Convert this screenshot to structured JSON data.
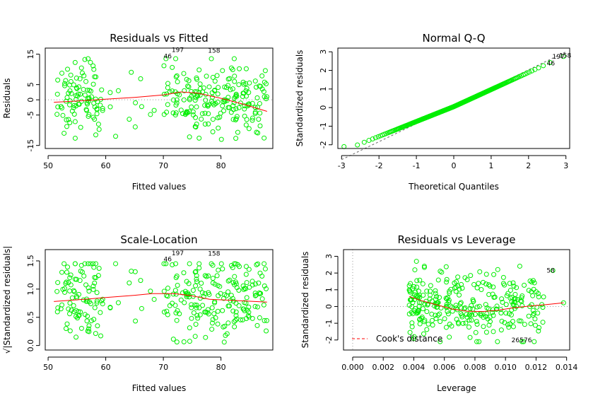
{
  "chart_data": [
    {
      "type": "scatter",
      "title": "Residuals vs Fitted",
      "xlabel": "Fitted values",
      "ylabel": "Residuals",
      "xlim": [
        49.5,
        89
      ],
      "ylim": [
        -16,
        17
      ],
      "xticks": [
        50,
        60,
        70,
        80
      ],
      "yticks": [
        -15,
        -5,
        0,
        5,
        15
      ],
      "ref_line": {
        "type": "h",
        "value": 0
      },
      "smooth": [
        [
          51,
          -0.8
        ],
        [
          55,
          -0.4
        ],
        [
          60,
          0.2
        ],
        [
          65,
          0.8
        ],
        [
          70,
          1.6
        ],
        [
          73,
          2.6
        ],
        [
          76,
          2.2
        ],
        [
          80,
          0.5
        ],
        [
          84,
          -1.5
        ],
        [
          88,
          -3.8
        ]
      ],
      "annotations": [
        {
          "label": "46",
          "x": 69.8,
          "y": 14.3
        },
        {
          "label": "197",
          "x": 71.2,
          "y": 16.4
        },
        {
          "label": "158",
          "x": 77.5,
          "y": 16.2
        }
      ]
    },
    {
      "type": "scatter",
      "title": "Normal Q-Q",
      "xlabel": "Theoretical Quantiles",
      "ylabel": "Standardized residuals",
      "xlim": [
        -3.1,
        3.1
      ],
      "ylim": [
        -2.2,
        3.2
      ],
      "xticks": [
        -3,
        -2,
        -1,
        0,
        1,
        2,
        3
      ],
      "yticks": [
        -2,
        -1,
        0,
        1,
        2,
        3
      ],
      "ref_line": {
        "type": "qq",
        "from": [
          -3,
          -2.8
        ],
        "to": [
          3,
          3
        ]
      },
      "annotations": [
        {
          "label": "46",
          "x": 2.45,
          "y": 2.38
        },
        {
          "label": "197",
          "x": 2.6,
          "y": 2.75
        },
        {
          "label": "158",
          "x": 2.78,
          "y": 2.8
        }
      ]
    },
    {
      "type": "scatter",
      "title": "Scale-Location",
      "xlabel": "Fitted values",
      "ylabel": "√|Standardized residuals|",
      "xlim": [
        49.5,
        89
      ],
      "ylim": [
        -0.08,
        1.7
      ],
      "xticks": [
        50,
        60,
        70,
        80
      ],
      "yticks": [
        0.0,
        0.5,
        1.0,
        1.5
      ],
      "smooth": [
        [
          51,
          0.78
        ],
        [
          55,
          0.81
        ],
        [
          60,
          0.85
        ],
        [
          65,
          0.89
        ],
        [
          68,
          0.92
        ],
        [
          72,
          0.92
        ],
        [
          75,
          0.88
        ],
        [
          78,
          0.82
        ],
        [
          82,
          0.8
        ],
        [
          88,
          0.77
        ]
      ],
      "annotations": [
        {
          "label": "46",
          "x": 69.8,
          "y": 1.53
        },
        {
          "label": "197",
          "x": 71.2,
          "y": 1.64
        },
        {
          "label": "158",
          "x": 77.5,
          "y": 1.63
        }
      ]
    },
    {
      "type": "scatter",
      "title": "Residuals vs Leverage",
      "xlabel": "Leverage",
      "ylabel": "Standardized residuals",
      "xlim": [
        -0.0006,
        0.0142
      ],
      "ylim": [
        -2.6,
        3.4
      ],
      "xticks": [
        0.0,
        0.002,
        0.004,
        0.006,
        0.008,
        0.01,
        0.012,
        0.014
      ],
      "yticks": [
        -2,
        -1,
        0,
        1,
        2,
        3
      ],
      "ref_line": {
        "type": "hv",
        "h": 0,
        "v": 0
      },
      "smooth": [
        [
          0.0037,
          0.6
        ],
        [
          0.0045,
          0.35
        ],
        [
          0.0055,
          0.1
        ],
        [
          0.0065,
          -0.15
        ],
        [
          0.0075,
          -0.28
        ],
        [
          0.0085,
          -0.3
        ],
        [
          0.0095,
          -0.22
        ],
        [
          0.0105,
          -0.08
        ],
        [
          0.0115,
          0.02
        ],
        [
          0.0125,
          0.1
        ],
        [
          0.0138,
          0.22
        ]
      ],
      "legend": {
        "label": "Cook's distance",
        "position": "bottom-left"
      },
      "annotations": [
        {
          "label": "58",
          "x": 0.0126,
          "y": 2.15
        },
        {
          "label": "265",
          "x": 0.0103,
          "y": -2.0
        },
        {
          "label": "76",
          "x": 0.0111,
          "y": -2.0
        }
      ]
    }
  ]
}
